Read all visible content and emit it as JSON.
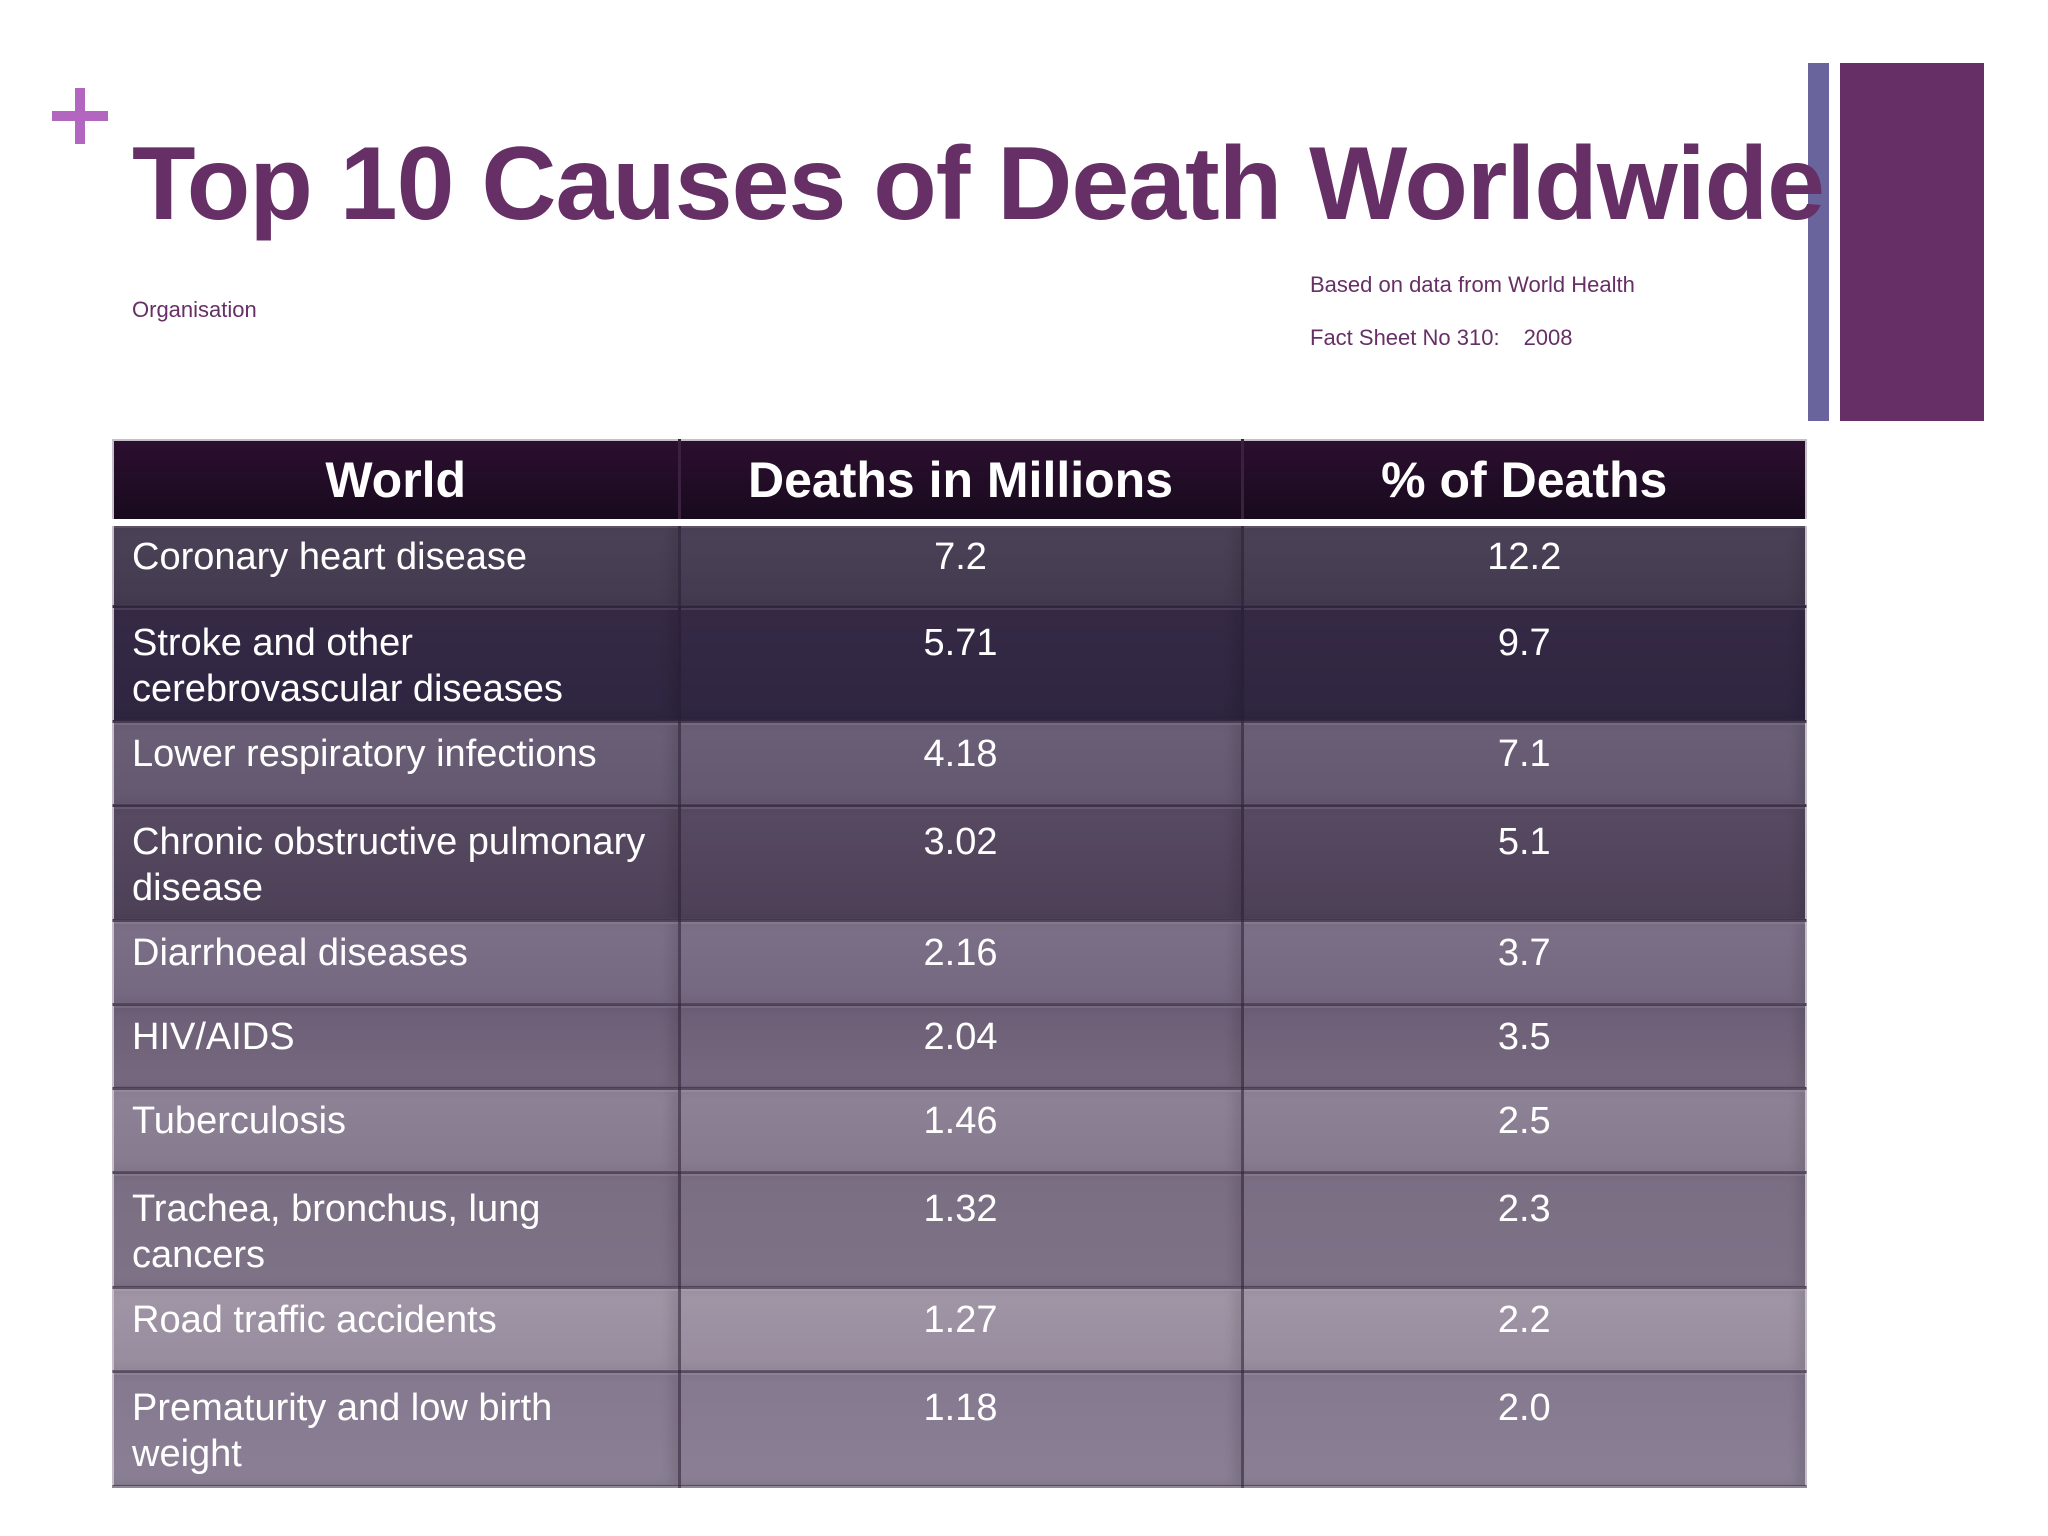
{
  "slide": {
    "title": "Top 10 Causes of Death Worldwide",
    "source": {
      "line1": "Based on data from World Health",
      "line2": "Organisation",
      "line3": "Fact Sheet No 310:",
      "year": "2008"
    }
  },
  "table": {
    "headers": [
      "World",
      "Deaths in Millions",
      "% of Deaths"
    ],
    "rows": [
      {
        "cause": "Coronary heart disease",
        "deaths_millions": "7.2",
        "percent": "12.2"
      },
      {
        "cause": "Stroke and other cerebrovascular diseases",
        "deaths_millions": "5.71",
        "percent": "9.7"
      },
      {
        "cause": "Lower respiratory infections",
        "deaths_millions": "4.18",
        "percent": "7.1"
      },
      {
        "cause": "Chronic obstructive pulmonary disease",
        "deaths_millions": "3.02",
        "percent": "5.1"
      },
      {
        "cause": "Diarrhoeal diseases",
        "deaths_millions": "2.16",
        "percent": "3.7"
      },
      {
        "cause": "HIV/AIDS",
        "deaths_millions": "2.04",
        "percent": "3.5"
      },
      {
        "cause": "Tuberculosis",
        "deaths_millions": "1.46",
        "percent": "2.5"
      },
      {
        "cause": "Trachea, bronchus, lung cancers",
        "deaths_millions": "1.32",
        "percent": "2.3"
      },
      {
        "cause": "Road traffic accidents",
        "deaths_millions": "1.27",
        "percent": "2.2"
      },
      {
        "cause": "Prematurity and low birth weight",
        "deaths_millions": "1.18",
        "percent": "2.0"
      }
    ]
  },
  "colors": {
    "accent_purple": "#662f66",
    "plus_pink": "#b266bf",
    "side_bar_blue": "#6a649c",
    "header_bg": "#1e0c24"
  }
}
